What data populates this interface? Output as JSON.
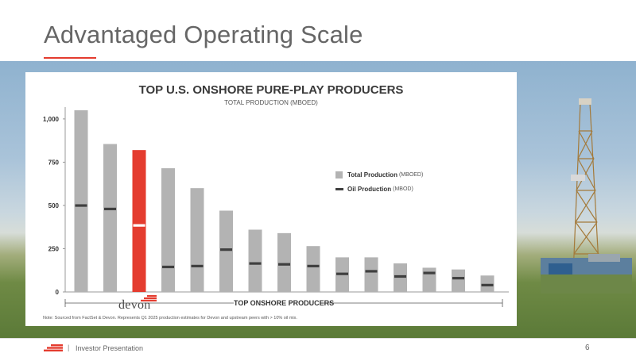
{
  "slide": {
    "title": "Advantaged Operating Scale",
    "footer_text": "Investor Presentation",
    "footer_separator": "|",
    "page_number": "6",
    "accent_color": "#e43c2f"
  },
  "chart_data": {
    "type": "bar",
    "title": "TOP U.S. ONSHORE PURE-PLAY PRODUCERS",
    "subtitle": "TOTAL PRODUCTION (MBOED)",
    "xlabel": "",
    "ylabel": "",
    "ylim": [
      0,
      1050
    ],
    "y_ticks": [
      0,
      250,
      500,
      750,
      1000
    ],
    "y_tick_labels": [
      "0",
      "250",
      "500",
      "750",
      "1,000"
    ],
    "grid": false,
    "highlight_index": 2,
    "highlight_label": "devon",
    "group_label": "TOP ONSHORE PRODUCERS",
    "colors": {
      "total": "#b3b3b3",
      "highlight": "#e43c2f",
      "oil": "#3f3f3f",
      "oil_highlight": "#ffffff"
    },
    "series": [
      {
        "values": [
          1050,
          855,
          820,
          715,
          600,
          470,
          360,
          340,
          265,
          200,
          200,
          165,
          140,
          130,
          95
        ]
      },
      {
        "values": [
          500,
          480,
          385,
          145,
          150,
          245,
          165,
          160,
          150,
          105,
          120,
          90,
          110,
          80,
          40
        ]
      }
    ],
    "legend": [
      {
        "label": "Total Production",
        "unit": "(MBOED)",
        "marker": "box"
      },
      {
        "label": "Oil Production",
        "unit": "(MBOD)",
        "marker": "line"
      }
    ],
    "legend_position": "right",
    "note": "Note: Sourced from FactSet & Devon. Represents Q1 2025 production estimates for Devon and upstream peers with > 10% oil mix."
  }
}
